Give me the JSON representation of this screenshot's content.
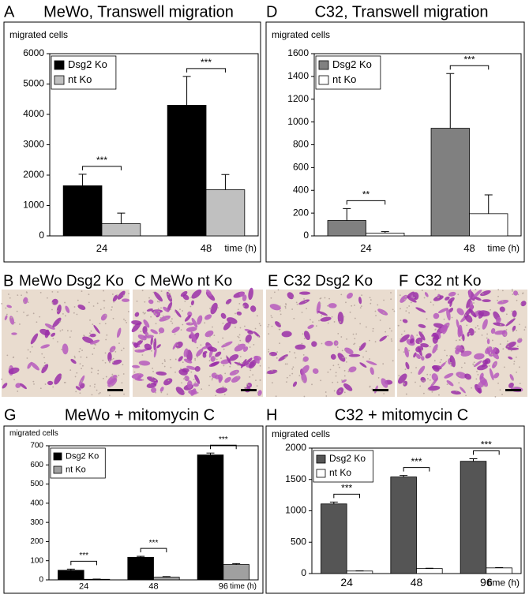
{
  "chart_data": [
    {
      "type": "bar",
      "panel": "A",
      "title": "MeWo, Transwell migration",
      "y_label": "migrated cells",
      "x_label": "time (h)",
      "categories": [
        "24",
        "48"
      ],
      "legend": "upper left",
      "series": [
        {
          "name": "Dsg2 Ko",
          "color": "#000000",
          "values": [
            1650,
            4300
          ],
          "errors": [
            380,
            950
          ]
        },
        {
          "name": "nt Ko",
          "color": "#c0c0c0",
          "values": [
            400,
            1520
          ],
          "errors": [
            350,
            500
          ]
        }
      ],
      "annotations": [
        "***",
        "***"
      ],
      "ylim": [
        0,
        6000
      ],
      "yticks": [
        0,
        1000,
        2000,
        3000,
        4000,
        5000,
        6000
      ]
    },
    {
      "type": "bar",
      "panel": "D",
      "title": "C32, Transwell migration",
      "y_label": "migrated cells",
      "x_label": "time (h)",
      "categories": [
        "24",
        "48"
      ],
      "legend": "upper left",
      "series": [
        {
          "name": "Dsg2 Ko",
          "color": "#808080",
          "values": [
            135,
            945
          ],
          "errors": [
            105,
            480
          ]
        },
        {
          "name": "nt Ko",
          "color": "#ffffff",
          "values": [
            25,
            195
          ],
          "errors": [
            12,
            165
          ]
        }
      ],
      "annotations": [
        "**",
        "***"
      ],
      "ylim": [
        0,
        1600
      ],
      "yticks": [
        0,
        200,
        400,
        600,
        800,
        1000,
        1200,
        1400,
        1600
      ]
    },
    {
      "type": "bar",
      "panel": "G",
      "title": "MeWo + mitomycin C",
      "y_label": "migrated cells",
      "x_label": "time (h)",
      "categories": [
        "24",
        "48",
        "96"
      ],
      "legend": "upper left",
      "series": [
        {
          "name": "Dsg2 Ko",
          "color": "#000000",
          "values": [
            50,
            118,
            652
          ],
          "errors": [
            6,
            5,
            10
          ]
        },
        {
          "name": "nt Ko",
          "color": "#a0a0a0",
          "values": [
            3,
            14,
            80
          ],
          "errors": [
            1,
            3,
            5
          ]
        }
      ],
      "annotations": [
        "***",
        "***",
        "***"
      ],
      "ylim": [
        0,
        700
      ],
      "yticks": [
        0,
        100,
        200,
        300,
        400,
        500,
        600,
        700
      ]
    },
    {
      "type": "bar",
      "panel": "H",
      "title": "C32 + mitomycin C",
      "y_label": "migrated cells",
      "x_label": "time (h)",
      "categories": [
        "24",
        "48",
        "96"
      ],
      "legend": "upper left",
      "series": [
        {
          "name": "Dsg2 Ko",
          "color": "#555555",
          "values": [
            1110,
            1540,
            1790
          ],
          "errors": [
            30,
            25,
            40
          ]
        },
        {
          "name": "nt Ko",
          "color": "#ffffff",
          "values": [
            40,
            80,
            90
          ],
          "errors": [
            3,
            5,
            5
          ]
        }
      ],
      "annotations": [
        "***",
        "***",
        "***"
      ],
      "ylim": [
        0,
        2000
      ],
      "yticks": [
        0,
        500,
        1000,
        1500,
        2000
      ]
    }
  ],
  "micrographs": [
    {
      "panel": "B",
      "label": "MeWo Dsg2 Ko"
    },
    {
      "panel": "C",
      "label": "MeWo nt Ko"
    },
    {
      "panel": "E",
      "label": "C32 Dsg2 Ko"
    },
    {
      "panel": "F",
      "label": "C32 nt Ko"
    }
  ]
}
